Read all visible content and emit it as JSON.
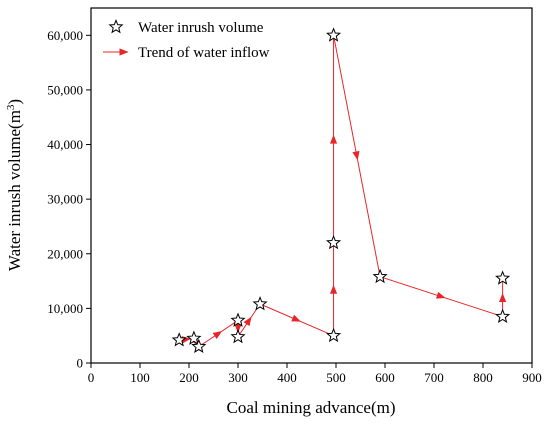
{
  "chart_data": {
    "type": "scatter",
    "title": "",
    "xlabel": "Coal mining advance(m)",
    "ylabel_text": "Water inrush volume(m",
    "ylabel_sup": "3",
    "ylabel_tail": ")",
    "xlim": [
      0,
      900
    ],
    "ylim": [
      0,
      65000
    ],
    "x_ticks": [
      0,
      100,
      200,
      300,
      400,
      500,
      600,
      700,
      800,
      900
    ],
    "x_tick_labels": [
      "0",
      "100",
      "200",
      "300",
      "400",
      "500",
      "600",
      "700",
      "800",
      "900"
    ],
    "y_ticks": [
      0,
      10000,
      20000,
      30000,
      40000,
      50000,
      60000
    ],
    "y_tick_labels": [
      "0",
      "10,000",
      "20,000",
      "30,000",
      "40,000",
      "50,000",
      "60,000"
    ],
    "grid": false,
    "legend_position": "top-left",
    "series": [
      {
        "name": "Water inrush volume",
        "marker": "star",
        "color": "#000000",
        "points": [
          {
            "x": 180,
            "y": 4200
          },
          {
            "x": 210,
            "y": 4500
          },
          {
            "x": 220,
            "y": 3000
          },
          {
            "x": 300,
            "y": 7800
          },
          {
            "x": 300,
            "y": 4800
          },
          {
            "x": 345,
            "y": 10800
          },
          {
            "x": 495,
            "y": 5000
          },
          {
            "x": 495,
            "y": 22000
          },
          {
            "x": 495,
            "y": 60000
          },
          {
            "x": 590,
            "y": 15800
          },
          {
            "x": 840,
            "y": 8500
          },
          {
            "x": 840,
            "y": 15500
          }
        ]
      },
      {
        "name": "Trend of water inflow",
        "color": "#e8262a",
        "marker": "arrow",
        "path": [
          {
            "x": 180,
            "y": 4200
          },
          {
            "x": 210,
            "y": 4500
          },
          {
            "x": 220,
            "y": 3000
          },
          {
            "x": 300,
            "y": 7800
          },
          {
            "x": 300,
            "y": 4800
          },
          {
            "x": 345,
            "y": 10800
          },
          {
            "x": 495,
            "y": 5000
          },
          {
            "x": 495,
            "y": 22000
          },
          {
            "x": 495,
            "y": 60000
          },
          {
            "x": 590,
            "y": 15800
          },
          {
            "x": 840,
            "y": 8500
          },
          {
            "x": 840,
            "y": 15500
          }
        ]
      }
    ]
  }
}
